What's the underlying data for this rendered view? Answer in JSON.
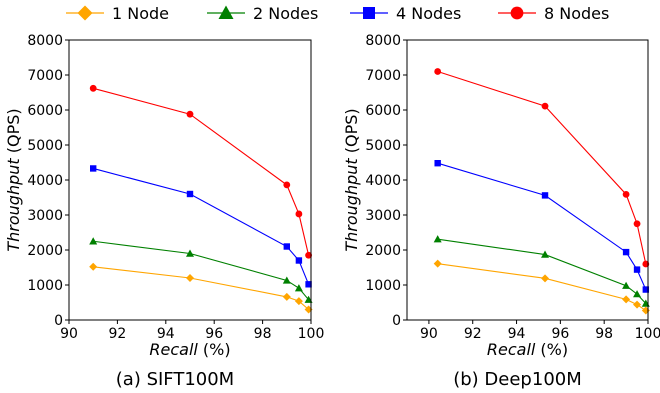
{
  "legend": {
    "items": [
      {
        "label": "1 Node",
        "color": "#FFA500",
        "marker": "diamond"
      },
      {
        "label": "2 Nodes",
        "color": "#008000",
        "marker": "triangle"
      },
      {
        "label": "4 Nodes",
        "color": "#0000FF",
        "marker": "square"
      },
      {
        "label": "8 Nodes",
        "color": "#FF0000",
        "marker": "circle"
      }
    ]
  },
  "chart_data": [
    {
      "type": "line",
      "title": "(a) SIFT100M",
      "xlabel_italic": "Recall",
      "xlabel_unit": " (%)",
      "ylabel_italic": "Throughput",
      "ylabel_unit": " (QPS)",
      "xlim": [
        90,
        100
      ],
      "ylim": [
        0,
        8000
      ],
      "xticks": [
        90,
        92,
        94,
        96,
        98,
        100
      ],
      "yticks": [
        0,
        1000,
        2000,
        3000,
        4000,
        5000,
        6000,
        7000,
        8000
      ],
      "grid": false,
      "series": [
        {
          "name": "1 Node",
          "color": "#FFA500",
          "marker": "diamond",
          "x": [
            91.0,
            95.0,
            99.0,
            99.5,
            99.9
          ],
          "y": [
            1520,
            1200,
            660,
            540,
            300
          ]
        },
        {
          "name": "2 Nodes",
          "color": "#008000",
          "marker": "triangle",
          "x": [
            91.0,
            95.0,
            99.0,
            99.5,
            99.9
          ],
          "y": [
            2250,
            1900,
            1130,
            910,
            580
          ]
        },
        {
          "name": "4 Nodes",
          "color": "#0000FF",
          "marker": "square",
          "x": [
            91.0,
            95.0,
            99.0,
            99.5,
            99.9
          ],
          "y": [
            4330,
            3600,
            2100,
            1700,
            1020
          ]
        },
        {
          "name": "8 Nodes",
          "color": "#FF0000",
          "marker": "circle",
          "x": [
            91.0,
            95.0,
            99.0,
            99.5,
            99.9
          ],
          "y": [
            6620,
            5880,
            3860,
            3030,
            1850
          ]
        }
      ]
    },
    {
      "type": "line",
      "title": "(b) Deep100M",
      "xlabel_italic": "Recall",
      "xlabel_unit": " (%)",
      "ylabel_italic": "Throughput",
      "ylabel_unit": " (QPS)",
      "xlim": [
        89,
        100
      ],
      "ylim": [
        0,
        8000
      ],
      "xticks": [
        90,
        92,
        94,
        96,
        98,
        100
      ],
      "yticks": [
        0,
        1000,
        2000,
        3000,
        4000,
        5000,
        6000,
        7000,
        8000
      ],
      "grid": false,
      "series": [
        {
          "name": "1 Node",
          "color": "#FFA500",
          "marker": "diamond",
          "x": [
            90.4,
            95.3,
            99.0,
            99.5,
            99.9
          ],
          "y": [
            1610,
            1190,
            590,
            440,
            270
          ]
        },
        {
          "name": "2 Nodes",
          "color": "#008000",
          "marker": "triangle",
          "x": [
            90.4,
            95.3,
            99.0,
            99.5,
            99.9
          ],
          "y": [
            2310,
            1870,
            980,
            740,
            470
          ]
        },
        {
          "name": "4 Nodes",
          "color": "#0000FF",
          "marker": "square",
          "x": [
            90.4,
            95.3,
            99.0,
            99.5,
            99.9
          ],
          "y": [
            4480,
            3560,
            1940,
            1440,
            870
          ]
        },
        {
          "name": "8 Nodes",
          "color": "#FF0000",
          "marker": "circle",
          "x": [
            90.4,
            95.3,
            99.0,
            99.5,
            99.9
          ],
          "y": [
            7100,
            6110,
            3590,
            2750,
            1600
          ]
        }
      ]
    }
  ]
}
